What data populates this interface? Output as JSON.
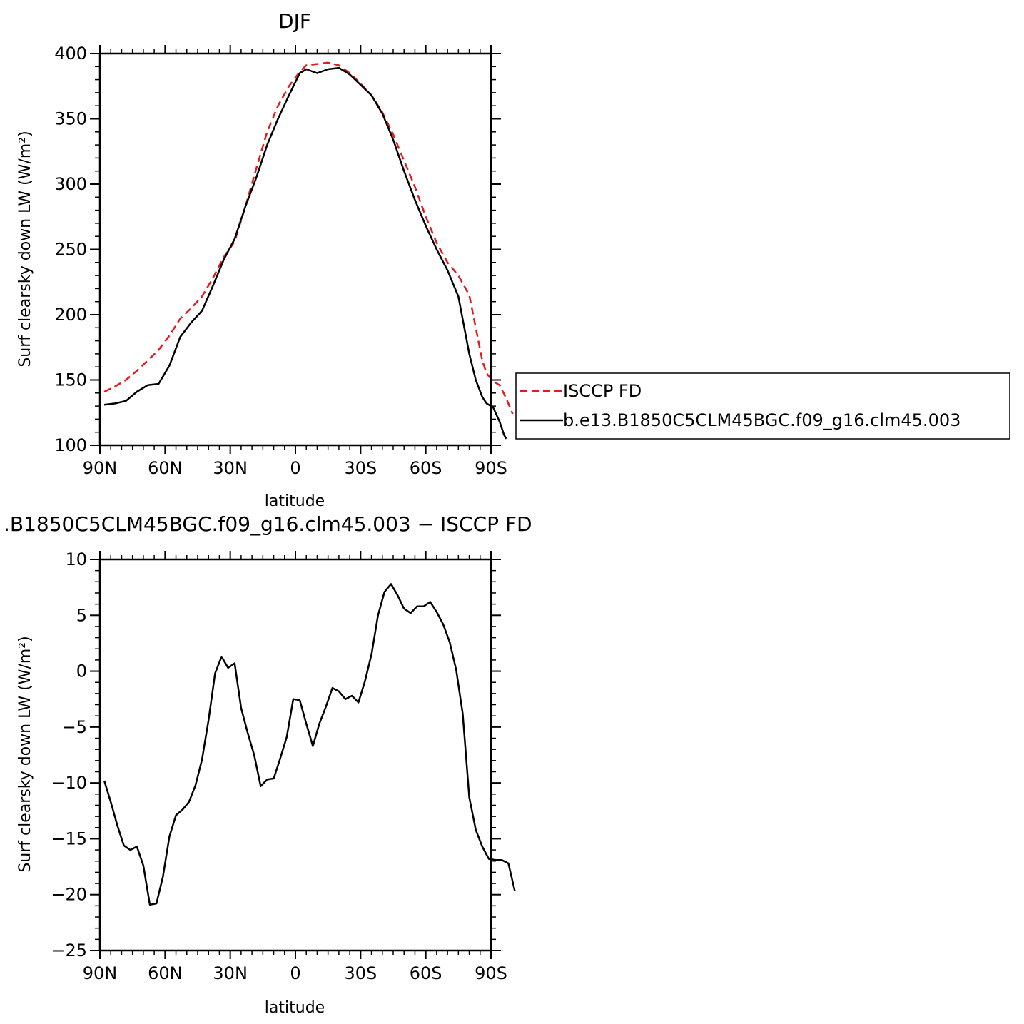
{
  "chart_data": [
    {
      "type": "line",
      "title": "DJF",
      "xlabel": "latitude",
      "ylabel": "Surf clearsky down LW (W/m²)",
      "xlim": [
        -90,
        90
      ],
      "ylim": [
        100,
        400
      ],
      "xticks": [
        {
          "value": -90,
          "label": "90N"
        },
        {
          "value": -60,
          "label": "60N"
        },
        {
          "value": -30,
          "label": "30N"
        },
        {
          "value": 0,
          "label": "0"
        },
        {
          "value": 30,
          "label": "30S"
        },
        {
          "value": 60,
          "label": "60S"
        },
        {
          "value": 90,
          "label": "90S"
        }
      ],
      "yticks": [
        {
          "value": 100,
          "label": "100"
        },
        {
          "value": 150,
          "label": "150"
        },
        {
          "value": 200,
          "label": "200"
        },
        {
          "value": 250,
          "label": "250"
        },
        {
          "value": 300,
          "label": "300"
        },
        {
          "value": 350,
          "label": "350"
        },
        {
          "value": 400,
          "label": "400"
        }
      ],
      "legend": {
        "placement": "right",
        "entries": [
          "ISCCP FD",
          "b.e13.B1850C5CLM45BGC.f09_g16.clm45.003"
        ]
      },
      "series": [
        {
          "name": "ISCCP FD",
          "color": "#e41a1c",
          "dash": "dashed",
          "points": [
            [
              -88,
              141
            ],
            [
              -83,
              145
            ],
            [
              -78,
              150
            ],
            [
              -73,
              157
            ],
            [
              -68,
              165
            ],
            [
              -63,
              173
            ],
            [
              -58,
              184
            ],
            [
              -53,
              197
            ],
            [
              -48,
              205
            ],
            [
              -43,
              214
            ],
            [
              -38,
              228
            ],
            [
              -33,
              244
            ],
            [
              -28,
              256
            ],
            [
              -23,
              283
            ],
            [
              -18,
              312
            ],
            [
              -13,
              340
            ],
            [
              -8,
              360
            ],
            [
              -3,
              375
            ],
            [
              2,
              386
            ],
            [
              5,
              391
            ],
            [
              10,
              392
            ],
            [
              15,
              393
            ],
            [
              20,
              391
            ],
            [
              25,
              385
            ],
            [
              30,
              377
            ],
            [
              35,
              368
            ],
            [
              40,
              355
            ],
            [
              45,
              338
            ],
            [
              50,
              318
            ],
            [
              55,
              298
            ],
            [
              60,
              275
            ],
            [
              65,
              255
            ],
            [
              70,
              240
            ],
            [
              75,
              230
            ],
            [
              80,
              215
            ],
            [
              83,
              190
            ],
            [
              86,
              165
            ],
            [
              88,
              155
            ],
            [
              91,
              149
            ],
            [
              94,
              146
            ],
            [
              97,
              136
            ],
            [
              100,
              124
            ]
          ]
        },
        {
          "name": "b.e13.B1850C5CLM45BGC.f09_g16.clm45.003",
          "color": "#000000",
          "dash": "solid",
          "points": [
            [
              -88,
              131
            ],
            [
              -83,
              132
            ],
            [
              -78,
              134
            ],
            [
              -73,
              141
            ],
            [
              -68,
              146
            ],
            [
              -63,
              147
            ],
            [
              -58,
              161
            ],
            [
              -53,
              183
            ],
            [
              -48,
              194
            ],
            [
              -43,
              203
            ],
            [
              -38,
              222
            ],
            [
              -33,
              242
            ],
            [
              -28,
              258
            ],
            [
              -23,
              283
            ],
            [
              -18,
              305
            ],
            [
              -13,
              330
            ],
            [
              -8,
              350
            ],
            [
              -3,
              368
            ],
            [
              2,
              385
            ],
            [
              5,
              388
            ],
            [
              10,
              385
            ],
            [
              15,
              388
            ],
            [
              20,
              389
            ],
            [
              25,
              384
            ],
            [
              30,
              376
            ],
            [
              35,
              368
            ],
            [
              40,
              354
            ],
            [
              45,
              334
            ],
            [
              50,
              310
            ],
            [
              55,
              288
            ],
            [
              60,
              268
            ],
            [
              65,
              250
            ],
            [
              70,
              234
            ],
            [
              75,
              214
            ],
            [
              80,
              170
            ],
            [
              83,
              150
            ],
            [
              86,
              137
            ],
            [
              88,
              132
            ],
            [
              91,
              129
            ],
            [
              94,
              118
            ],
            [
              96,
              108
            ],
            [
              97,
              105
            ]
          ]
        }
      ]
    },
    {
      "type": "line",
      "title": ".B1850C5CLM45BGC.f09_g16.clm45.003 − ISCCP FD",
      "xlabel": "latitude",
      "ylabel": "Surf clearsky down LW (W/m²)",
      "xlim": [
        -90,
        90
      ],
      "ylim": [
        -25,
        10
      ],
      "xticks": [
        {
          "value": -90,
          "label": "90N"
        },
        {
          "value": -60,
          "label": "60N"
        },
        {
          "value": -30,
          "label": "30N"
        },
        {
          "value": 0,
          "label": "0"
        },
        {
          "value": 30,
          "label": "30S"
        },
        {
          "value": 60,
          "label": "60S"
        },
        {
          "value": 90,
          "label": "90S"
        }
      ],
      "yticks": [
        {
          "value": -25,
          "label": "−25"
        },
        {
          "value": -20,
          "label": "−20"
        },
        {
          "value": -15,
          "label": "−15"
        },
        {
          "value": -10,
          "label": "−10"
        },
        {
          "value": -5,
          "label": "−5"
        },
        {
          "value": 0,
          "label": "0"
        },
        {
          "value": 5,
          "label": "5"
        },
        {
          "value": 10,
          "label": "10"
        }
      ],
      "series": [
        {
          "color": "#000000",
          "dash": "solid",
          "points": [
            [
              -88,
              -9.8
            ],
            [
              -85,
              -11.7
            ],
            [
              -82,
              -13.8
            ],
            [
              -79,
              -15.6
            ],
            [
              -76,
              -16.0
            ],
            [
              -73,
              -15.7
            ],
            [
              -70,
              -17.4
            ],
            [
              -67,
              -20.9
            ],
            [
              -64,
              -20.8
            ],
            [
              -61,
              -18.4
            ],
            [
              -58,
              -14.8
            ],
            [
              -55,
              -12.9
            ],
            [
              -52,
              -12.4
            ],
            [
              -49,
              -11.7
            ],
            [
              -46,
              -10.2
            ],
            [
              -43,
              -7.9
            ],
            [
              -40,
              -4.4
            ],
            [
              -37,
              -0.2
            ],
            [
              -34,
              1.3
            ],
            [
              -31,
              0.3
            ],
            [
              -28,
              0.7
            ],
            [
              -25,
              -3.3
            ],
            [
              -22,
              -5.5
            ],
            [
              -19,
              -7.5
            ],
            [
              -16,
              -10.3
            ],
            [
              -13,
              -9.7
            ],
            [
              -10,
              -9.6
            ],
            [
              -7,
              -7.8
            ],
            [
              -4,
              -5.9
            ],
            [
              -1,
              -2.5
            ],
            [
              2,
              -2.6
            ],
            [
              5,
              -4.7
            ],
            [
              8,
              -6.7
            ],
            [
              11,
              -4.7
            ],
            [
              14,
              -3.2
            ],
            [
              17,
              -1.5
            ],
            [
              20,
              -1.8
            ],
            [
              23,
              -2.5
            ],
            [
              26,
              -2.2
            ],
            [
              29,
              -2.8
            ],
            [
              32,
              -0.9
            ],
            [
              35,
              1.5
            ],
            [
              38,
              5.0
            ],
            [
              41,
              7.1
            ],
            [
              44,
              7.8
            ],
            [
              47,
              6.8
            ],
            [
              50,
              5.6
            ],
            [
              53,
              5.2
            ],
            [
              56,
              5.8
            ],
            [
              59,
              5.8
            ],
            [
              62,
              6.2
            ],
            [
              65,
              5.3
            ],
            [
              68,
              4.2
            ],
            [
              71,
              2.6
            ],
            [
              74,
              0.1
            ],
            [
              77,
              -3.8
            ],
            [
              80,
              -11.3
            ],
            [
              83,
              -14.2
            ],
            [
              86,
              -15.7
            ],
            [
              89,
              -16.8
            ],
            [
              92,
              -16.9
            ],
            [
              95,
              -16.9
            ],
            [
              98,
              -17.2
            ],
            [
              101,
              -19.7
            ]
          ]
        }
      ]
    }
  ]
}
